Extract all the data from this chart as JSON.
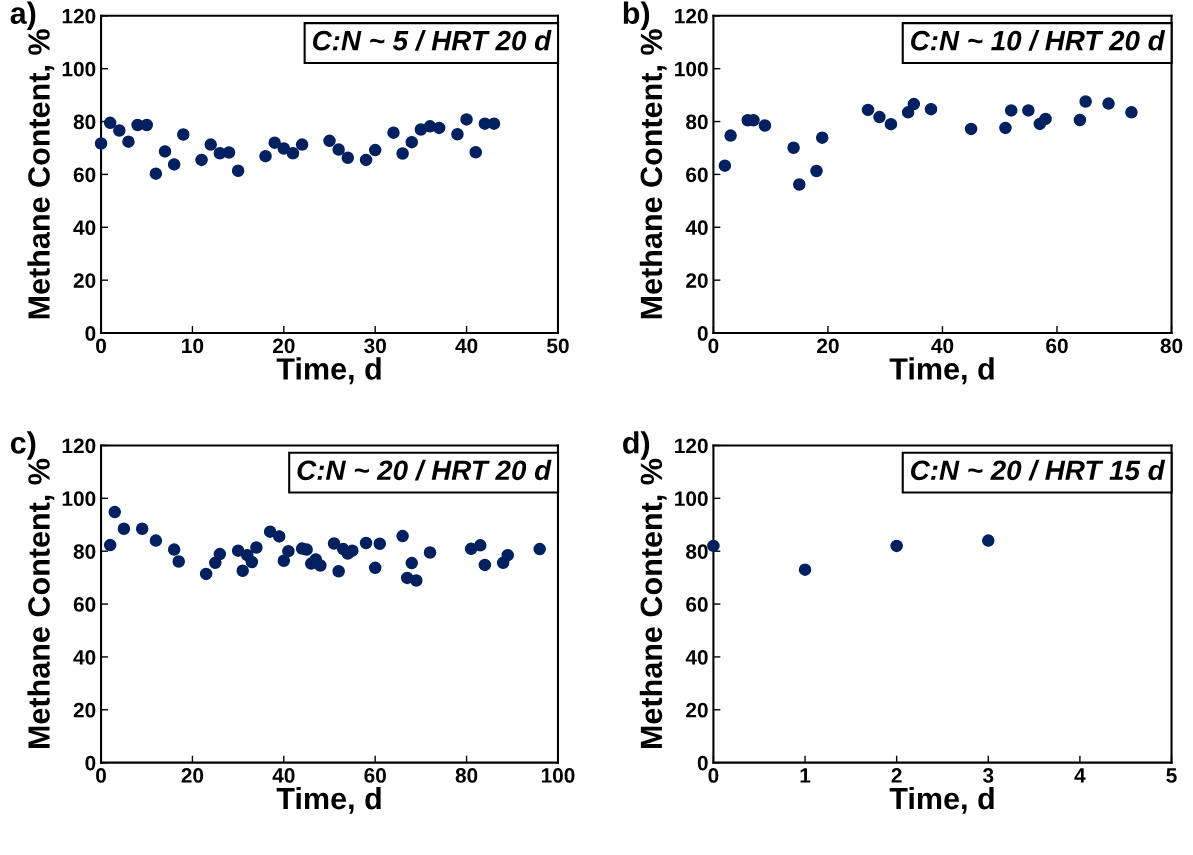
{
  "chart_data": [
    {
      "type": "scatter",
      "title": "C:N ~ 5 / HRT 20 d",
      "xlabel": "Time, d",
      "ylabel": "Methane Content, %",
      "annotations": [
        "a)"
      ],
      "marker": "circle",
      "xlim": [
        0,
        50
      ],
      "xticks": [
        0,
        10,
        20,
        30,
        40,
        50
      ],
      "ylim": [
        0,
        120
      ],
      "yticks": [
        0,
        20,
        40,
        60,
        80,
        100,
        120
      ],
      "series": [
        {
          "color": "#002060",
          "x": [
            0,
            1,
            2,
            3,
            4,
            5,
            6,
            7,
            8,
            9,
            11,
            12,
            13,
            14,
            15,
            18,
            19,
            20,
            21,
            22,
            25,
            26,
            27,
            29,
            30,
            32,
            33,
            34,
            35,
            36,
            37,
            39,
            40,
            41,
            42,
            43
          ],
          "values": [
            71.7,
            79.5,
            76.6,
            72.4,
            78.7,
            78.7,
            60.3,
            68.7,
            63.8,
            75.1,
            65.5,
            71.3,
            68,
            68.3,
            61.4,
            66.9,
            72,
            69.8,
            68,
            71.3,
            72.7,
            69.4,
            66.3,
            65.5,
            69.2,
            75.8,
            67.9,
            72.2,
            77,
            78.2,
            77.6,
            75.2,
            80.8,
            68.4,
            79.2,
            79.2
          ]
        }
      ]
    },
    {
      "type": "scatter",
      "title": "C:N ~ 10 / HRT 20 d",
      "xlabel": "Time, d",
      "ylabel": "Methane Content, %",
      "annotations": [
        "b)"
      ],
      "marker": "circle",
      "xlim": [
        0,
        80
      ],
      "xticks": [
        0,
        20,
        40,
        60,
        80
      ],
      "ylim": [
        0,
        120
      ],
      "yticks": [
        0,
        20,
        40,
        60,
        80,
        100,
        120
      ],
      "series": [
        {
          "color": "#002060",
          "x": [
            2,
            3,
            6,
            7,
            9,
            14,
            15,
            18,
            19,
            27,
            29,
            31,
            34,
            35,
            38,
            45,
            51,
            52,
            55,
            57,
            58,
            64,
            65,
            69,
            73
          ],
          "values": [
            63.3,
            74.7,
            80.5,
            80.5,
            78.5,
            70.1,
            56.2,
            61.3,
            73.9,
            84.4,
            81.7,
            79,
            83.5,
            86.6,
            84.7,
            77.2,
            77.6,
            84.2,
            84.2,
            79.1,
            81,
            80.6,
            87.6,
            86.8,
            83.5
          ]
        }
      ]
    },
    {
      "type": "scatter",
      "title": "C:N ~ 20 / HRT 20 d",
      "xlabel": "Time, d",
      "ylabel": "Methane Content, %",
      "annotations": [
        "c)"
      ],
      "marker": "circle",
      "xlim": [
        0,
        100
      ],
      "xticks": [
        0,
        20,
        40,
        60,
        80,
        100
      ],
      "ylim": [
        0,
        120
      ],
      "yticks": [
        0,
        20,
        40,
        60,
        80,
        100,
        120
      ],
      "series": [
        {
          "color": "#002060",
          "x": [
            2,
            3,
            5,
            9,
            12,
            16,
            17,
            23,
            25,
            26,
            30,
            31,
            32,
            33,
            34,
            37,
            39,
            40,
            41,
            44,
            45,
            46,
            47,
            48,
            51,
            52,
            53,
            54,
            55,
            58,
            60,
            61,
            66,
            68,
            67,
            69,
            72,
            81,
            83,
            84,
            88,
            89,
            96
          ],
          "values": [
            82.3,
            94.8,
            88.5,
            88.5,
            84,
            80.6,
            76.1,
            71.4,
            75.6,
            78.9,
            80.2,
            72.6,
            78.5,
            75.9,
            81.4,
            87.4,
            85.6,
            76.4,
            80,
            81,
            80.6,
            75.3,
            76.9,
            74.6,
            82.9,
            72.4,
            80.8,
            79.1,
            80.2,
            83.1,
            73.7,
            82.8,
            85.7,
            75.5,
            69.9,
            68.9,
            79.5,
            80.9,
            82.2,
            74.8,
            75.6,
            78.5,
            80.8
          ]
        }
      ]
    },
    {
      "type": "scatter",
      "title": "C:N ~ 20 / HRT 15 d",
      "xlabel": "Time, d",
      "ylabel": "Methane Content, %",
      "annotations": [
        "d)"
      ],
      "marker": "circle",
      "xlim": [
        0,
        5
      ],
      "xticks": [
        0,
        1,
        2,
        3,
        4,
        5
      ],
      "ylim": [
        0,
        120
      ],
      "yticks": [
        0,
        20,
        40,
        60,
        80,
        100,
        120
      ],
      "series": [
        {
          "color": "#002060",
          "x": [
            0,
            1,
            2,
            3
          ],
          "values": [
            82,
            73,
            82,
            84
          ]
        }
      ]
    }
  ]
}
